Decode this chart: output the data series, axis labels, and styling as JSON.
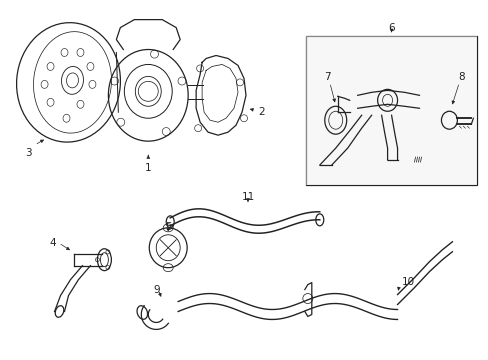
{
  "bg_color": "#ffffff",
  "line_color": "#222222",
  "lw": 0.9,
  "fs": 7.5,
  "figw": 4.89,
  "figh": 3.6,
  "dpi": 100,
  "xmin": 0,
  "xmax": 489,
  "ymin": 0,
  "ymax": 360
}
